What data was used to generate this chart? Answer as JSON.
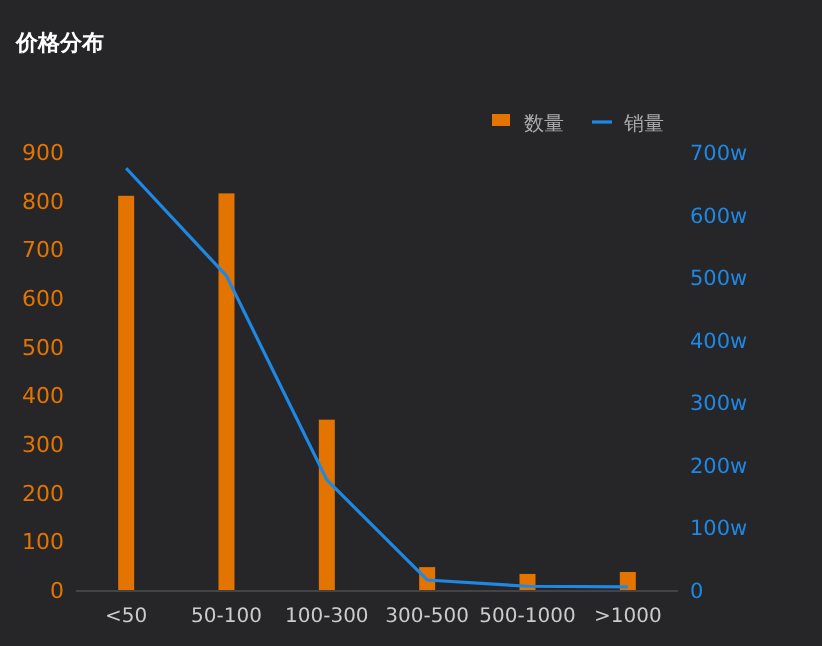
{
  "chart_data": {
    "type": "bar",
    "title": "价格分布",
    "categories": [
      "<50",
      "50-100",
      "100-300",
      "300-500",
      "500-1000",
      ">1000"
    ],
    "series": [
      {
        "name": "数量",
        "color": "#e37400",
        "values": [
          810,
          815,
          350,
          47,
          33,
          37
        ]
      },
      {
        "name": "销量",
        "type": "line",
        "axis": "y2",
        "color": "#1e88e5",
        "values": [
          674,
          502,
          176,
          16,
          6,
          5
        ]
      }
    ],
    "ylim": [
      0,
      900
    ],
    "yticks": [
      0,
      100,
      200,
      300,
      400,
      500,
      600,
      700,
      800,
      900
    ],
    "y2lim": [
      0,
      700
    ],
    "y2ticks": [
      {
        "value": 0,
        "label": "0"
      },
      {
        "value": 100,
        "label": "100w"
      },
      {
        "value": 200,
        "label": "200w"
      },
      {
        "value": 300,
        "label": "300w"
      },
      {
        "value": 400,
        "label": "400w"
      },
      {
        "value": 500,
        "label": "500w"
      },
      {
        "value": 600,
        "label": "600w"
      },
      {
        "value": 700,
        "label": "700w"
      }
    ],
    "legend": "top right"
  }
}
